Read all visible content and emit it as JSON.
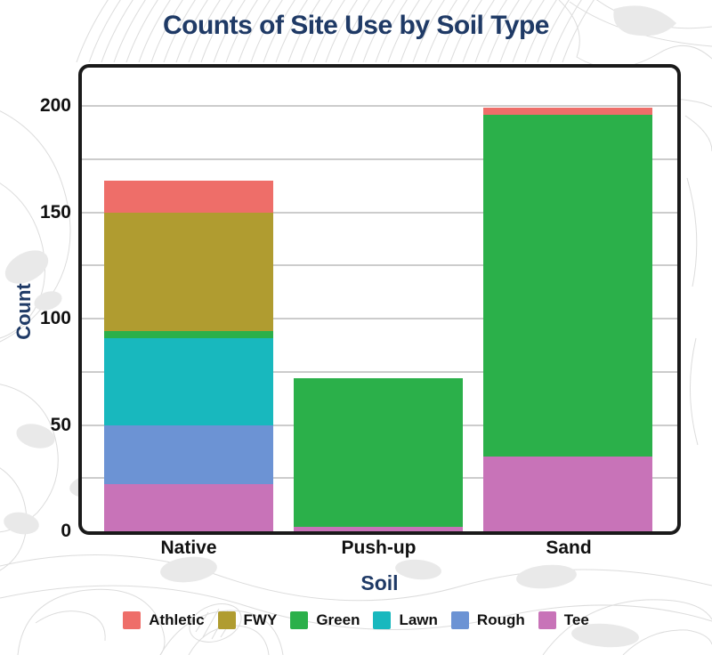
{
  "chart_data": {
    "type": "bar",
    "stacked": true,
    "title": "Counts of Site Use by Soil Type",
    "xlabel": "Soil",
    "ylabel": "Count",
    "categories": [
      "Native",
      "Push-up",
      "Sand"
    ],
    "ylim": [
      0,
      200
    ],
    "ytick_values": [
      0,
      50,
      100,
      150,
      200
    ],
    "grid": true,
    "grid_interval": 25,
    "legend_position": "bottom",
    "stack_order_bottom_to_top": [
      "Tee",
      "Rough",
      "Lawn",
      "Green",
      "FWY",
      "Athletic"
    ],
    "series": [
      {
        "name": "Athletic",
        "color": "#EE6E69",
        "values": [
          15,
          0,
          3
        ]
      },
      {
        "name": "FWY",
        "color": "#B09C30",
        "values": [
          56,
          0,
          0
        ]
      },
      {
        "name": "Green",
        "color": "#2BB04A",
        "values": [
          3,
          70,
          161
        ]
      },
      {
        "name": "Lawn",
        "color": "#18B8BE",
        "values": [
          41,
          0,
          0
        ]
      },
      {
        "name": "Rough",
        "color": "#6C93D4",
        "values": [
          28,
          0,
          0
        ]
      },
      {
        "name": "Tee",
        "color": "#C873B8",
        "values": [
          22,
          2,
          35
        ]
      }
    ]
  },
  "styles": {
    "title_color": "#1F3A66",
    "axis_title_color": "#1F3A66",
    "tick_label_color": "#111111",
    "grid_color": "#CCCCCC",
    "frame_color": "#1A1A1A",
    "background": "#FFFFFF",
    "topo_line_color": "#DCDCDC",
    "topo_fill_color": "#E9E9E9"
  }
}
